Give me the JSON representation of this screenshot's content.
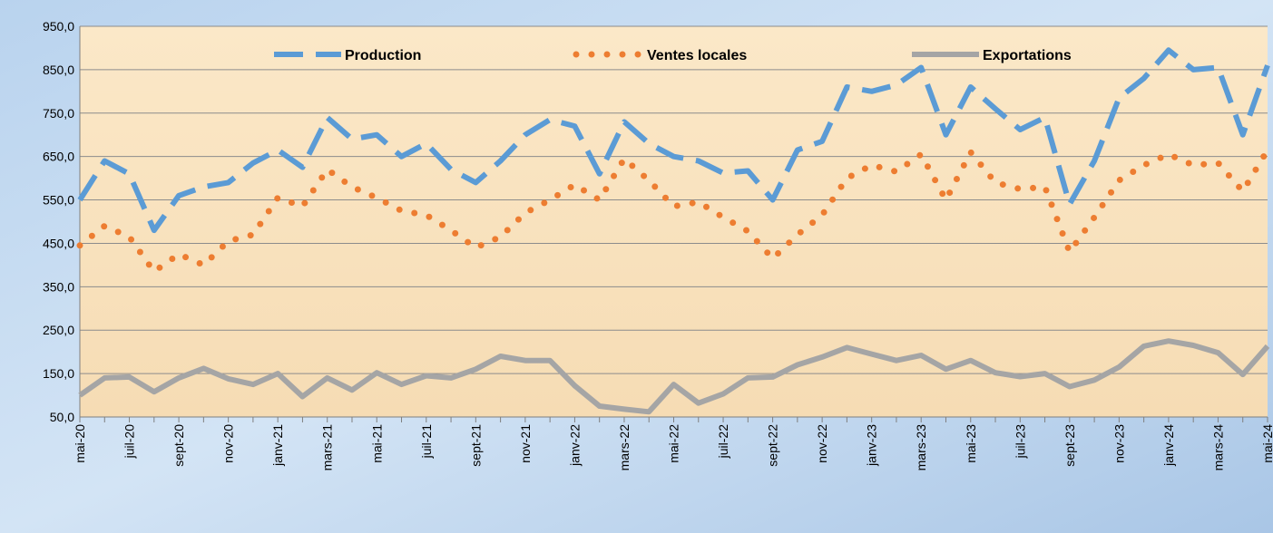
{
  "chart_data": {
    "type": "line",
    "categories": [
      "mai-20",
      null,
      "juil-20",
      null,
      "sept-20",
      null,
      "nov-20",
      null,
      "janv-21",
      null,
      "mars-21",
      null,
      "mai-21",
      null,
      "juil-21",
      null,
      "sept-21",
      null,
      "nov-21",
      null,
      "janv-22",
      null,
      "mars-22",
      null,
      "mai-22",
      null,
      "juil-22",
      null,
      "sept-22",
      null,
      "nov-22",
      null,
      "janv-23",
      null,
      "mars-23",
      null,
      "mai-23",
      null,
      "juil-23",
      null,
      "sept-23",
      null,
      "nov-23",
      null,
      "janv-24",
      null,
      "mars-24",
      null,
      "mai-24"
    ],
    "series": [
      {
        "name": "Production",
        "color": "#5b9bd5",
        "style": "dashed",
        "values": [
          550,
          640,
          610,
          480,
          560,
          580,
          590,
          635,
          665,
          625,
          740,
          690,
          700,
          650,
          680,
          620,
          590,
          640,
          700,
          735,
          720,
          610,
          730,
          680,
          650,
          640,
          612,
          617,
          550,
          665,
          685,
          810,
          800,
          815,
          855,
          700,
          810,
          760,
          712,
          740,
          540,
          640,
          785,
          830,
          895,
          850,
          855,
          700,
          860
        ]
      },
      {
        "name": "Ventes locales",
        "color": "#ed7d31",
        "style": "dotted",
        "values": [
          445,
          490,
          465,
          385,
          425,
          400,
          455,
          470,
          555,
          535,
          620,
          580,
          555,
          525,
          515,
          480,
          440,
          465,
          520,
          550,
          585,
          550,
          645,
          595,
          535,
          545,
          510,
          478,
          415,
          470,
          515,
          600,
          630,
          615,
          655,
          550,
          660,
          590,
          575,
          580,
          430,
          510,
          595,
          630,
          655,
          630,
          635,
          570,
          665
        ]
      },
      {
        "name": "Exportations",
        "color": "#a5a5a5",
        "style": "solid",
        "values": [
          100,
          140,
          142,
          108,
          140,
          162,
          138,
          125,
          150,
          97,
          140,
          112,
          152,
          125,
          145,
          140,
          160,
          190,
          180,
          180,
          122,
          75,
          68,
          62,
          125,
          82,
          103,
          140,
          142,
          170,
          188,
          210,
          195,
          180,
          192,
          160,
          180,
          152,
          143,
          150,
          120,
          135,
          165,
          213,
          225,
          215,
          198,
          148,
          213
        ]
      }
    ],
    "ylim": [
      50,
      950
    ],
    "yticks": [
      {
        "value": 50,
        "label": "50,0"
      },
      {
        "value": 150,
        "label": "150,0"
      },
      {
        "value": 250,
        "label": "250,0"
      },
      {
        "value": 350,
        "label": "350,0"
      },
      {
        "value": 450,
        "label": "450,0"
      },
      {
        "value": 550,
        "label": "550,0"
      },
      {
        "value": 650,
        "label": "650,0"
      },
      {
        "value": 750,
        "label": "750,0"
      },
      {
        "value": 850,
        "label": "850,0"
      },
      {
        "value": 950,
        "label": "950,0"
      }
    ],
    "grid": true,
    "legend": "top"
  }
}
